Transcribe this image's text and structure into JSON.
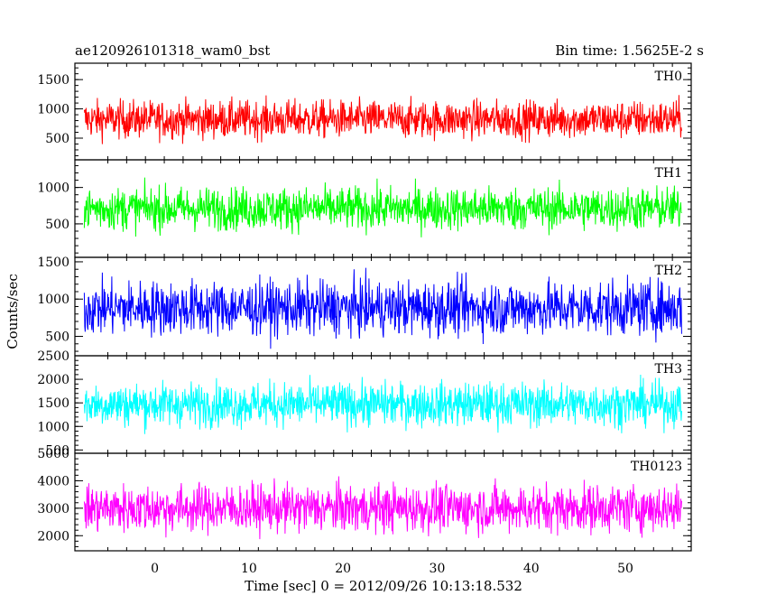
{
  "chart_data": {
    "type": "line",
    "title_left": "ae120926101318_wam0_bst",
    "title_right": "Bin time: 1.5625E-2 s",
    "xlabel": "Time [sec] 0 = 2012/09/26 10:13:18.532",
    "ylabel": "Counts/sec",
    "xlim": [
      -8.5,
      57
    ],
    "x_ticks": [
      {
        "v": 0,
        "label": "0"
      },
      {
        "v": 10,
        "label": "10"
      },
      {
        "v": 20,
        "label": "20"
      },
      {
        "v": 30,
        "label": "30"
      },
      {
        "v": 40,
        "label": "40"
      },
      {
        "v": 50,
        "label": "50"
      }
    ],
    "data_x_range": [
      -7.5,
      56
    ],
    "panels": [
      {
        "name": "TH0",
        "color": "#ff0000",
        "ylim": [
          130,
          1780
        ],
        "y_ticks": [
          {
            "v": 500,
            "label": "500"
          },
          {
            "v": 1000,
            "label": "1000"
          },
          {
            "v": 1500,
            "label": "1500"
          }
        ],
        "mean": 820,
        "spread": 230
      },
      {
        "name": "TH1",
        "color": "#00ff00",
        "ylim": [
          40,
          1380
        ],
        "y_ticks": [
          {
            "v": 500,
            "label": "500"
          },
          {
            "v": 1000,
            "label": "1000"
          }
        ],
        "mean": 710,
        "spread": 210
      },
      {
        "name": "TH2",
        "color": "#0000ff",
        "ylim": [
          240,
          1560
        ],
        "y_ticks": [
          {
            "v": 500,
            "label": "500"
          },
          {
            "v": 1000,
            "label": "1000"
          },
          {
            "v": 1500,
            "label": "1500"
          }
        ],
        "mean": 880,
        "spread": 260
      },
      {
        "name": "TH3",
        "color": "#00ffff",
        "ylim": [
          430,
          2500
        ],
        "y_ticks": [
          {
            "v": 500,
            "label": "500"
          },
          {
            "v": 1000,
            "label": "1000"
          },
          {
            "v": 1500,
            "label": "1500"
          },
          {
            "v": 2000,
            "label": "2000"
          },
          {
            "v": 2500,
            "label": "2500"
          }
        ],
        "mean": 1470,
        "spread": 330
      },
      {
        "name": "TH0123",
        "color": "#ff00ff",
        "ylim": [
          1450,
          5000
        ],
        "y_ticks": [
          {
            "v": 2000,
            "label": "2000"
          },
          {
            "v": 3000,
            "label": "3000"
          },
          {
            "v": 4000,
            "label": "4000"
          },
          {
            "v": 5000,
            "label": "5000"
          }
        ],
        "mean": 3000,
        "spread": 620
      }
    ]
  }
}
